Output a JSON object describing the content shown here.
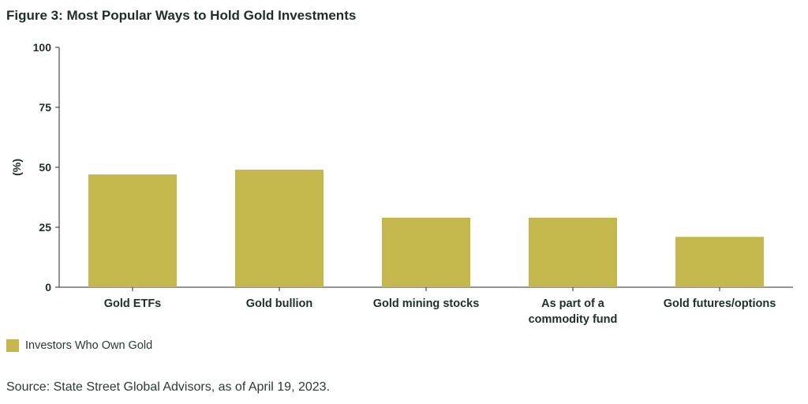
{
  "title": "Figure 3: Most Popular Ways to Hold Gold Investments",
  "legend": {
    "label": "Investors Who Own Gold"
  },
  "source": "Source: State Street Global Advisors, as of April 19, 2023.",
  "colors": {
    "bar": "#c4b84d",
    "axis": "#2b2b2b",
    "text": "#1e2e29"
  },
  "chart_data": {
    "type": "bar",
    "title": "Figure 3: Most Popular Ways to Hold Gold Investments",
    "xlabel": "",
    "ylabel": "(%)",
    "ylim": [
      0,
      100
    ],
    "yticks": [
      0,
      25,
      50,
      75,
      100
    ],
    "grid": false,
    "legend_position": "bottom-left",
    "categories": [
      [
        "Gold ETFs"
      ],
      [
        "Gold bullion"
      ],
      [
        "Gold mining stocks"
      ],
      [
        "As part of a",
        "commodity fund"
      ],
      [
        "Gold futures/options"
      ]
    ],
    "series": [
      {
        "name": "Investors Who Own Gold",
        "values": [
          47,
          49,
          29,
          29,
          21
        ]
      }
    ]
  }
}
